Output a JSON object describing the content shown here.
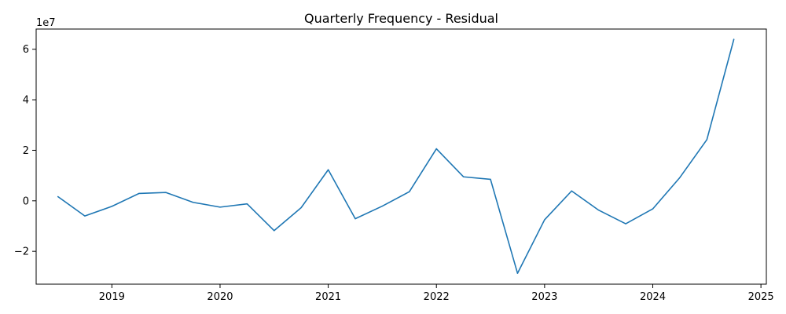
{
  "chart_data": {
    "type": "line",
    "title": "Quarterly Frequency - Residual",
    "xlabel": "",
    "ylabel": "",
    "y_offset_text": "1e7",
    "y_scale": 10000000,
    "xlim": [
      2018.3,
      2025.05
    ],
    "ylim": [
      -3.3,
      6.8
    ],
    "grid": false,
    "line_color": "#1f77b4",
    "x_ticks": [
      {
        "value": 2019,
        "label": "2019"
      },
      {
        "value": 2020,
        "label": "2020"
      },
      {
        "value": 2021,
        "label": "2021"
      },
      {
        "value": 2022,
        "label": "2022"
      },
      {
        "value": 2023,
        "label": "2023"
      },
      {
        "value": 2024,
        "label": "2024"
      },
      {
        "value": 2025,
        "label": "2025"
      }
    ],
    "y_ticks": [
      {
        "value": -2,
        "label": "−2"
      },
      {
        "value": 0,
        "label": "0"
      },
      {
        "value": 2,
        "label": "2"
      },
      {
        "value": 4,
        "label": "4"
      },
      {
        "value": 6,
        "label": "6"
      }
    ],
    "series": [
      {
        "name": "Residual",
        "x": [
          2018.5,
          2018.75,
          2019.0,
          2019.25,
          2019.5,
          2019.75,
          2020.0,
          2020.25,
          2020.5,
          2020.75,
          2021.0,
          2021.25,
          2021.5,
          2021.75,
          2022.0,
          2022.25,
          2022.5,
          2022.75,
          2023.0,
          2023.25,
          2023.5,
          2023.75,
          2024.0,
          2024.25,
          2024.5,
          2024.75
        ],
        "values": [
          0.17,
          -0.6,
          -0.22,
          0.29,
          0.33,
          -0.06,
          -0.25,
          -0.12,
          -1.18,
          -0.27,
          1.23,
          -0.71,
          -0.21,
          0.36,
          2.06,
          0.95,
          0.85,
          -2.87,
          -0.75,
          0.39,
          -0.37,
          -0.91,
          -0.32,
          0.92,
          2.42,
          6.4
        ]
      }
    ]
  }
}
